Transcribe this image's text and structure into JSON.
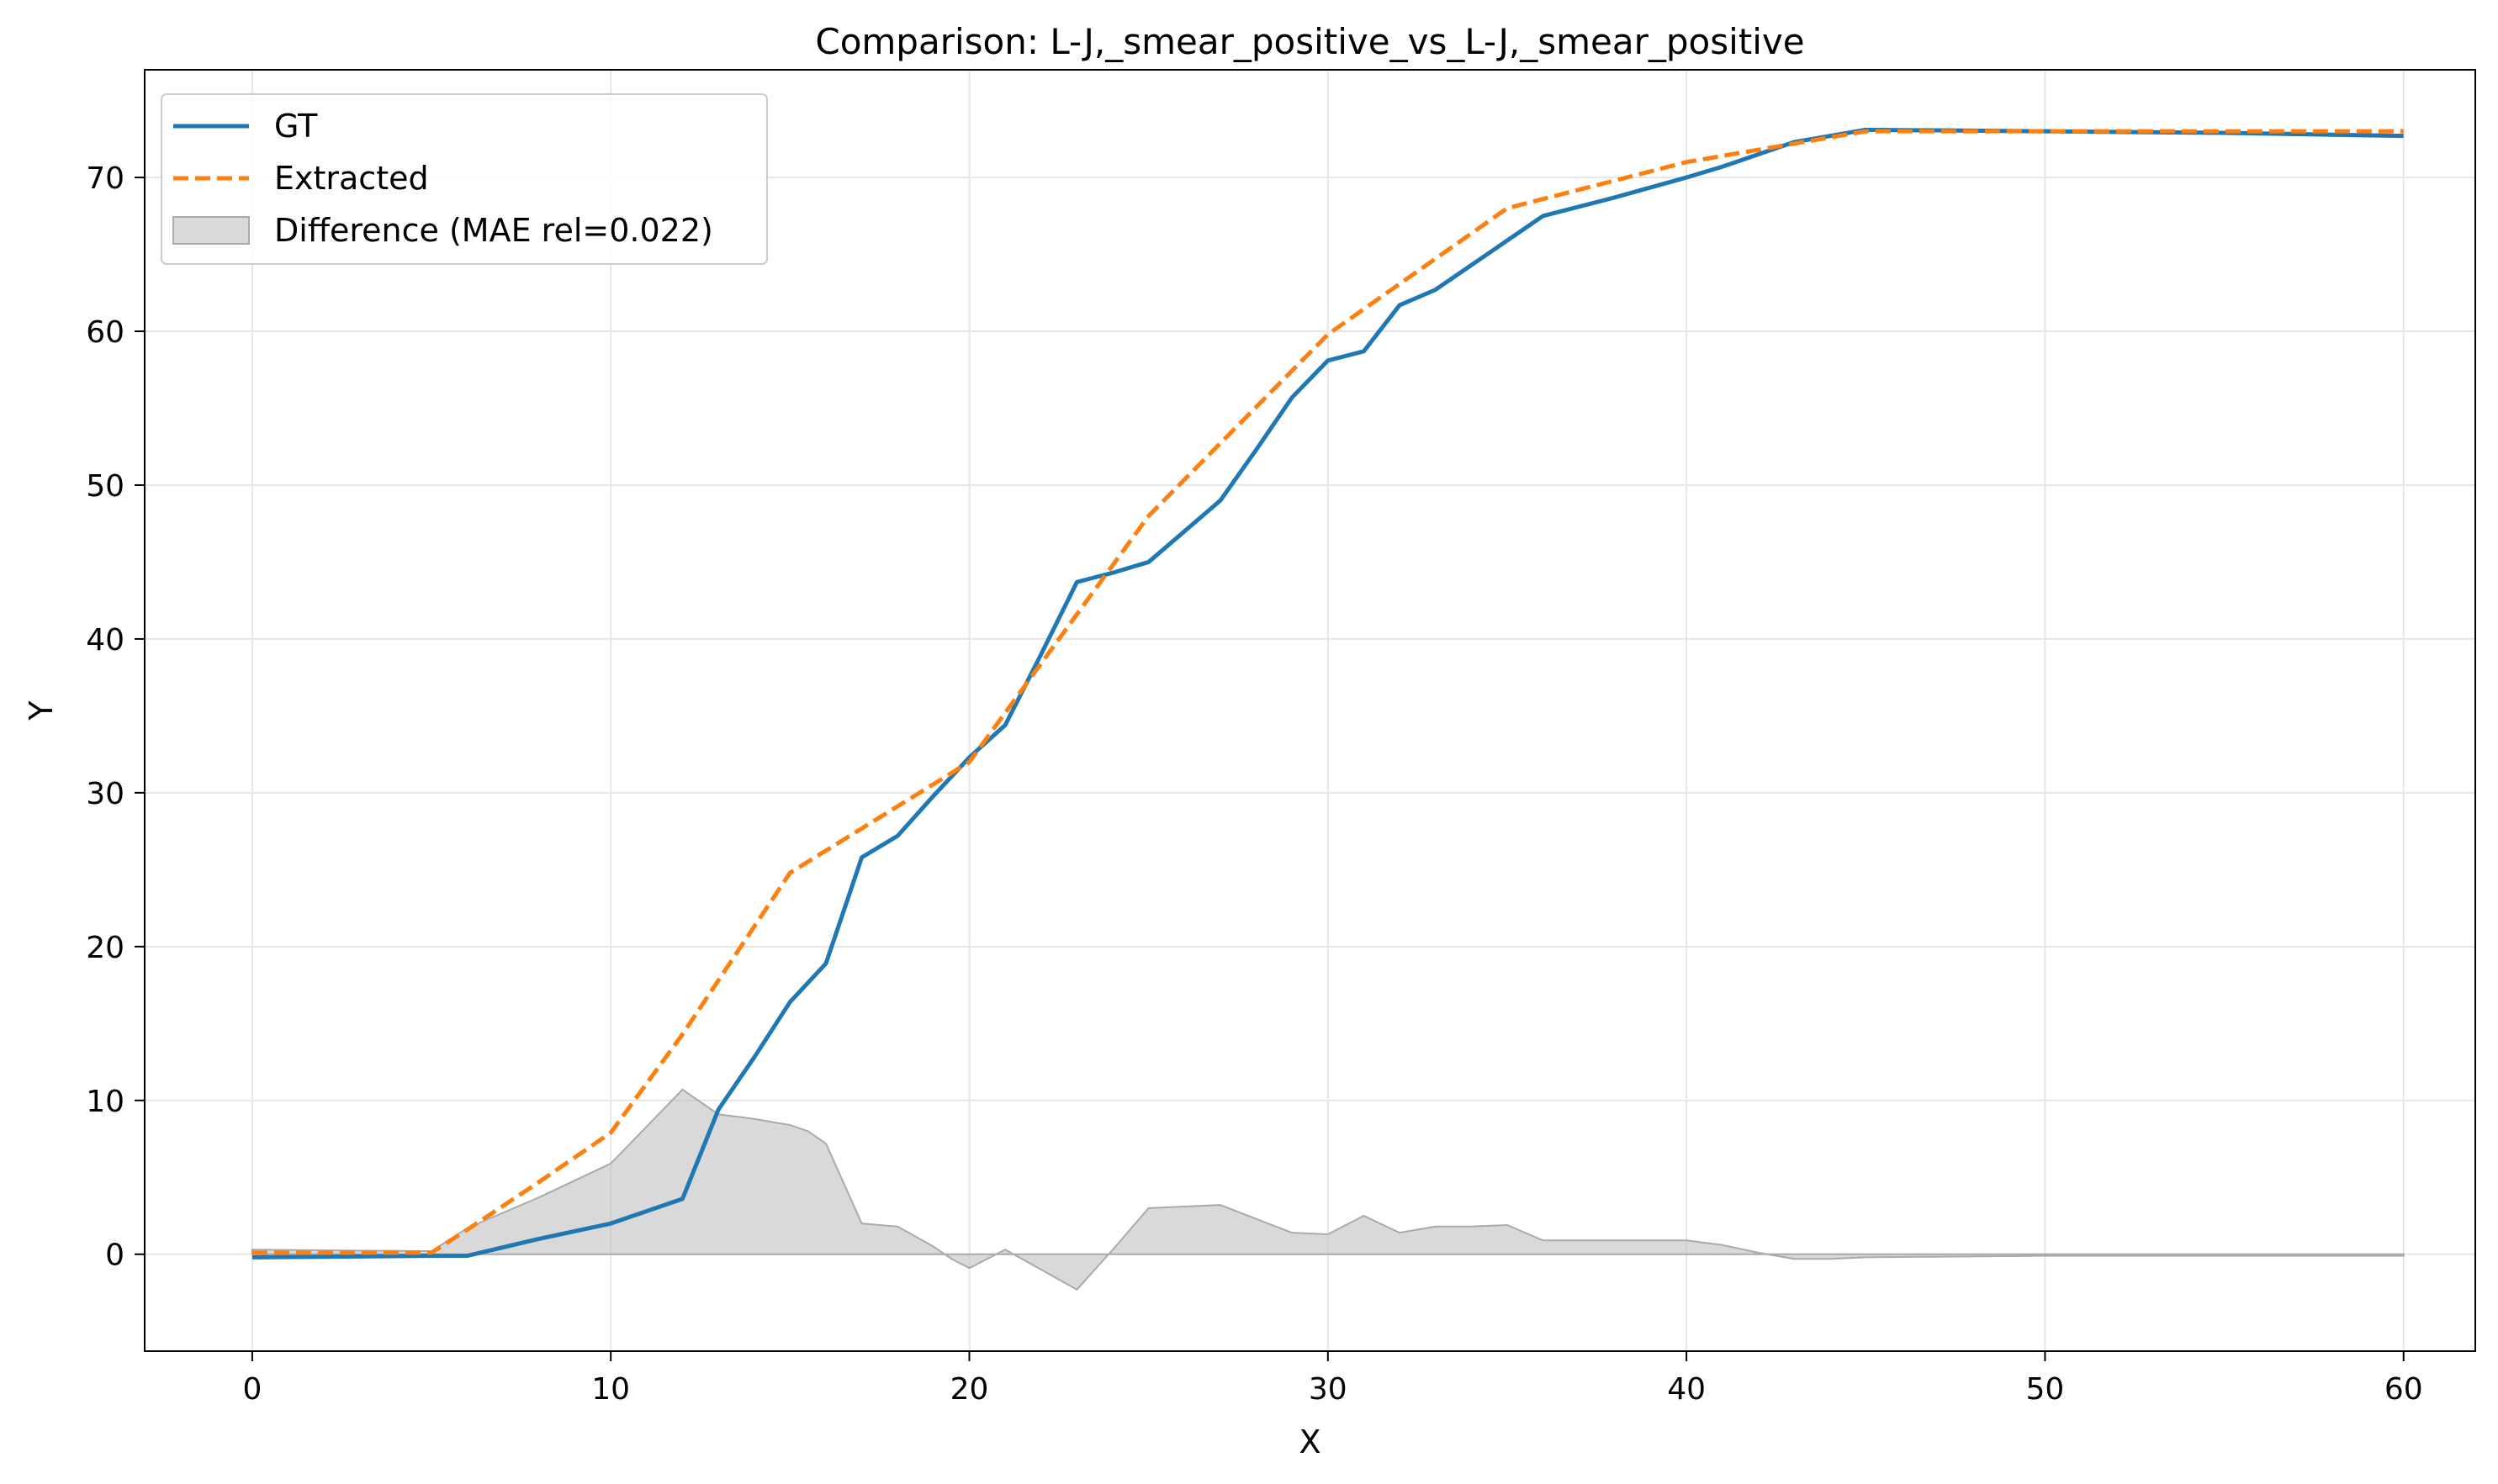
{
  "chart_data": {
    "type": "line",
    "title": "Comparison: L-J,_smear_positive_vs_L-J,_smear_positive",
    "xlabel": "X",
    "ylabel": "Y",
    "xlim": [
      -3,
      62
    ],
    "ylim": [
      -6.3,
      77
    ],
    "xticks": [
      0,
      10,
      20,
      30,
      40,
      50,
      60
    ],
    "yticks": [
      0,
      10,
      20,
      30,
      40,
      50,
      60,
      70
    ],
    "grid": true,
    "legend_position": "top-left",
    "series": [
      {
        "name": "GT",
        "color": "#1f77b4",
        "style": "solid",
        "x": [
          0,
          5,
          6,
          8,
          10,
          12,
          13,
          14,
          15,
          16,
          17,
          18,
          19,
          20,
          21,
          22,
          23,
          24,
          25,
          26,
          27,
          28,
          29,
          30,
          31,
          32,
          33,
          34,
          35,
          36,
          38,
          40,
          41,
          42,
          43,
          44,
          45,
          50,
          55,
          60
        ],
        "y": [
          -0.2,
          -0.1,
          -0.1,
          1.0,
          2.0,
          3.6,
          9.4,
          12.8,
          16.4,
          18.9,
          25.8,
          27.2,
          29.8,
          32.3,
          34.4,
          39.0,
          43.7,
          44.3,
          45.0,
          47.0,
          49.0,
          52.3,
          55.7,
          58.1,
          58.7,
          61.7,
          62.7,
          64.3,
          65.9,
          67.5,
          68.7,
          70.0,
          70.7,
          71.5,
          72.3,
          72.7,
          73.1,
          73.0,
          72.9,
          72.7
        ]
      },
      {
        "name": "Extracted",
        "color": "#ff7f0e",
        "style": "dashed",
        "x": [
          0,
          5,
          6,
          8,
          10,
          12,
          15,
          20,
          25,
          30,
          35,
          40,
          43,
          45,
          50,
          55,
          60
        ],
        "y": [
          0.1,
          0.1,
          1.6,
          4.7,
          7.9,
          14.3,
          24.8,
          32.0,
          48.0,
          59.8,
          68.0,
          71.0,
          72.2,
          73.0,
          73.0,
          73.0,
          73.0
        ]
      }
    ],
    "difference": {
      "name": "Difference (MAE rel=0.022)",
      "color": "#bfbfbf",
      "x": [
        0,
        5,
        6,
        8,
        10,
        12,
        13,
        14,
        15,
        15.5,
        16,
        17,
        18,
        19,
        19.5,
        20,
        21,
        22,
        23,
        24,
        25,
        26,
        27,
        28,
        29,
        30,
        31,
        32,
        33,
        34,
        35,
        36,
        38,
        40,
        41,
        42,
        43,
        44,
        45,
        50,
        55,
        60
      ],
      "y": [
        0.3,
        0.2,
        1.7,
        3.7,
        5.9,
        10.7,
        9.1,
        8.8,
        8.4,
        8.0,
        7.2,
        2.0,
        1.8,
        0.5,
        -0.3,
        -0.9,
        0.3,
        -1.0,
        -2.3,
        0.3,
        3.0,
        3.1,
        3.2,
        2.3,
        1.4,
        1.3,
        2.5,
        1.4,
        1.8,
        1.8,
        1.9,
        0.9,
        0.9,
        0.9,
        0.6,
        0.1,
        -0.3,
        -0.3,
        -0.2,
        -0.1,
        -0.1,
        -0.1
      ]
    }
  }
}
